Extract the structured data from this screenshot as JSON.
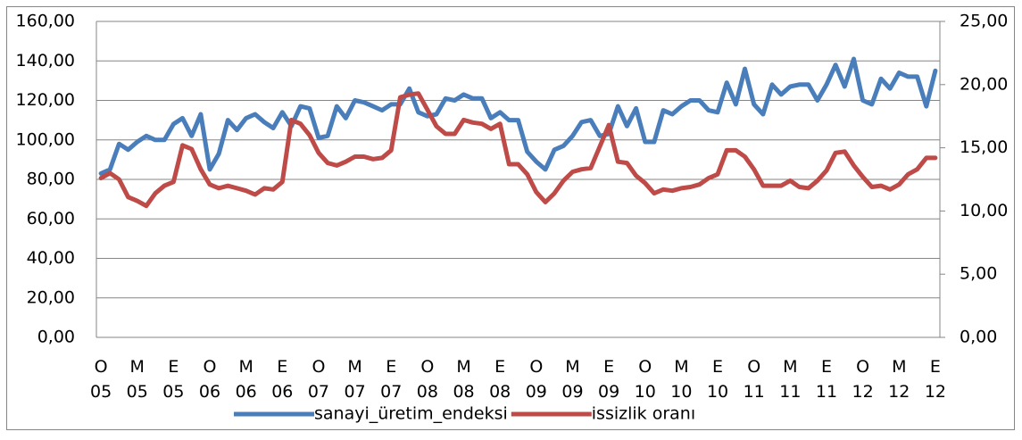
{
  "chart_data": {
    "type": "line",
    "categories": [
      "O 05",
      null,
      null,
      null,
      "M 05",
      null,
      null,
      null,
      "E 05",
      null,
      null,
      null,
      "O 06",
      null,
      null,
      null,
      "M 06",
      null,
      null,
      null,
      "E 06",
      null,
      null,
      null,
      "O 07",
      null,
      null,
      null,
      "M 07",
      null,
      null,
      null,
      "E 07",
      null,
      null,
      null,
      "O 08",
      null,
      null,
      null,
      "M 08",
      null,
      null,
      null,
      "E 08",
      null,
      null,
      null,
      "O 09",
      null,
      null,
      null,
      "M 09",
      null,
      null,
      null,
      "E 09",
      null,
      null,
      null,
      "O 10",
      null,
      null,
      null,
      "M 10",
      null,
      null,
      null,
      "E 10",
      null,
      null,
      null,
      "O 11",
      null,
      null,
      null,
      "M 11",
      null,
      null,
      null,
      "E 11",
      null,
      null,
      null,
      "O 12",
      null,
      null,
      null,
      "M 12",
      null,
      null,
      null,
      "E 12"
    ],
    "series": [
      {
        "name": "sanayi_üretim_endeksi",
        "color": "#4a7ebb",
        "axis": "y",
        "values": [
          83,
          85,
          98,
          95,
          99,
          102,
          100,
          100,
          108,
          111,
          102,
          113,
          85,
          93,
          110,
          105,
          111,
          113,
          109,
          106,
          114,
          107,
          117,
          116,
          101,
          102,
          117,
          111,
          120,
          119,
          117,
          115,
          118,
          118,
          126,
          114,
          112,
          113,
          121,
          120,
          123,
          121,
          121,
          111,
          114,
          110,
          110,
          94,
          89,
          85,
          95,
          97,
          102,
          109,
          110,
          102,
          103,
          117,
          107,
          116,
          99,
          99,
          115,
          113,
          117,
          120,
          120,
          115,
          114,
          129,
          118,
          136,
          118,
          113,
          128,
          123,
          127,
          128,
          128,
          120,
          128,
          138,
          127,
          141,
          120,
          118,
          131,
          126,
          134,
          132,
          132,
          117,
          135
        ]
      },
      {
        "name": "issizlik oranı",
        "color": "#be4b48",
        "axis": "y2",
        "values": [
          12.6,
          13.0,
          12.5,
          11.1,
          10.8,
          10.4,
          11.4,
          12.0,
          12.3,
          15.2,
          14.9,
          13.3,
          12.1,
          11.8,
          12.0,
          11.8,
          11.6,
          11.3,
          11.8,
          11.7,
          12.3,
          17.2,
          16.9,
          16.0,
          14.6,
          13.8,
          13.6,
          13.9,
          14.3,
          14.3,
          14.1,
          14.2,
          14.8,
          19.0,
          19.2,
          19.3,
          18.0,
          16.7,
          16.1,
          16.1,
          17.2,
          17.0,
          16.9,
          16.5,
          16.9,
          13.7,
          13.7,
          12.9,
          11.5,
          10.7,
          11.4,
          12.4,
          13.1,
          13.3,
          13.4,
          15.1,
          16.8,
          13.9,
          13.8,
          12.8,
          12.2,
          11.4,
          11.7,
          11.6,
          11.8,
          11.9,
          12.1,
          12.6,
          12.9,
          14.8,
          14.8,
          14.3,
          13.3,
          12.0,
          12.0,
          12.0,
          12.4,
          11.9,
          11.8,
          12.4,
          13.2,
          14.6,
          14.7,
          13.6,
          12.7,
          11.9,
          12.0,
          11.7,
          12.1,
          12.9,
          13.3,
          14.2,
          14.2
        ]
      }
    ],
    "ylim": [
      0,
      160
    ],
    "yticks": [
      {
        "value": 0,
        "label": "0,00"
      },
      {
        "value": 20,
        "label": "20,00"
      },
      {
        "value": 40,
        "label": "40,00"
      },
      {
        "value": 60,
        "label": "60,00"
      },
      {
        "value": 80,
        "label": "80,00"
      },
      {
        "value": 100,
        "label": "100,00"
      },
      {
        "value": 120,
        "label": "120,00"
      },
      {
        "value": 140,
        "label": "140,00"
      },
      {
        "value": 160,
        "label": "160,00"
      }
    ],
    "y2lim": [
      0,
      25
    ],
    "y2ticks": [
      {
        "value": 0,
        "label": "0,00"
      },
      {
        "value": 5,
        "label": "5,00"
      },
      {
        "value": 10,
        "label": "10,00"
      },
      {
        "value": 15,
        "label": "15,00"
      },
      {
        "value": 20,
        "label": "20,00"
      },
      {
        "value": 25,
        "label": "25,00"
      }
    ],
    "grid": true,
    "legend": "bottom"
  }
}
